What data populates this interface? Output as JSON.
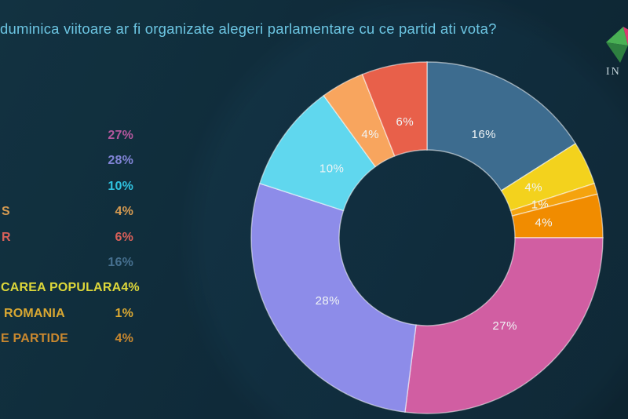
{
  "title": "duminica viitoare ar fi organizate alegeri parlamentare cu ce partid ati vota?",
  "logo_text": "IN",
  "logo_colors": [
    "#49b054",
    "#d83a70",
    "#2e8040",
    "#b02458"
  ],
  "chart_data": {
    "type": "pie",
    "subtype": "donut",
    "title": "duminica viitoare ar fi organizate alegeri parlamentare cu ce partid ati vota?",
    "start_angle": "top",
    "direction": "clockwise",
    "inner_radius_ratio": 0.5,
    "label_text_color": "#f0f4f5",
    "segments": [
      {
        "value": 16,
        "text": "16%",
        "color": "#3d6c8f"
      },
      {
        "value": 4,
        "text": "4%",
        "color": "#f3d21d"
      },
      {
        "value": 1,
        "text": "1%",
        "color": "#f5a30e"
      },
      {
        "value": 4,
        "text": "4%",
        "color": "#f18c00"
      },
      {
        "value": 27,
        "text": "27%",
        "color": "#d15ea2"
      },
      {
        "value": 28,
        "text": "28%",
        "color": "#8d8ce9"
      },
      {
        "value": 10,
        "text": "10%",
        "color": "#60d7ee"
      },
      {
        "value": 4,
        "text": "4%",
        "color": "#f8a55e"
      },
      {
        "value": 6,
        "text": "6%",
        "color": "#e8604a"
      }
    ],
    "legend_rows": [
      {
        "label": "",
        "value": "27%",
        "color": "#b3579d"
      },
      {
        "label": "",
        "value": "28%",
        "color": "#8084d6"
      },
      {
        "label": "",
        "value": "10%",
        "color": "#2fc1de"
      },
      {
        "label": "S",
        "value": "4%",
        "color": "#d79b51"
      },
      {
        "label": "R",
        "value": "6%",
        "color": "#d96059"
      },
      {
        "label": "",
        "value": "16%",
        "color": "#46708f"
      },
      {
        "label": "CAREA POPULARA",
        "value": "4%",
        "color": "#ddd73a"
      },
      {
        "label": "ROMANIA",
        "value": "1%",
        "color": "#daa832"
      },
      {
        "label": "E PARTIDE",
        "value": "4%",
        "color": "#c9882f"
      }
    ]
  }
}
